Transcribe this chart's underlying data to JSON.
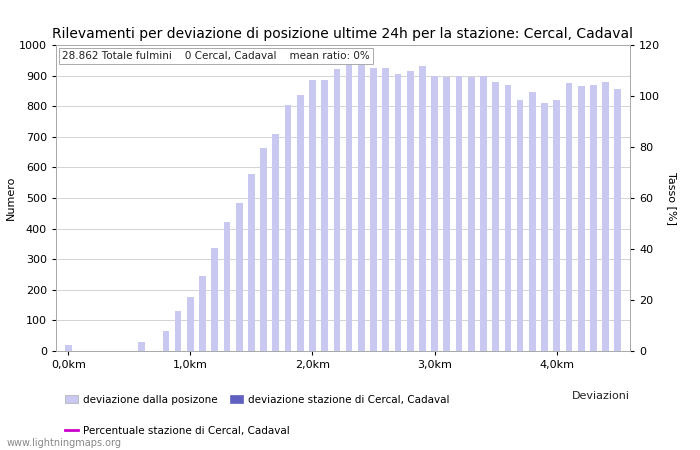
{
  "title": "Rilevamenti per deviazione di posizione ultime 24h per la stazione: Cercal, Cadaval",
  "subtitle": "28.862 Totale fulmini    0 Cercal, Cadaval    mean ratio: 0%",
  "xlabel": "Deviazioni",
  "ylabel_left": "Numero",
  "ylabel_right": "Tasso [%]",
  "ylim_left": [
    0,
    1000
  ],
  "ylim_right": [
    0,
    120
  ],
  "yticks_left": [
    0,
    100,
    200,
    300,
    400,
    500,
    600,
    700,
    800,
    900,
    1000
  ],
  "yticks_right": [
    0,
    20,
    40,
    60,
    80,
    100,
    120
  ],
  "xtick_labels": [
    "0,0km",
    "1,0km",
    "2,0km",
    "3,0km",
    "4,0km"
  ],
  "xtick_positions": [
    0,
    10,
    20,
    30,
    40
  ],
  "bar_color_light": "#c8c8f0",
  "bar_color_dark": "#6060c0",
  "line_color": "#cc00cc",
  "background_color": "#ffffff",
  "grid_color": "#cccccc",
  "bar_values": [
    20,
    0,
    0,
    0,
    0,
    0,
    30,
    0,
    65,
    130,
    175,
    245,
    335,
    420,
    485,
    580,
    665,
    710,
    805,
    835,
    885,
    885,
    920,
    960,
    940,
    925,
    925,
    905,
    915,
    930,
    900,
    895,
    900,
    895,
    900,
    880,
    870,
    820,
    845,
    810,
    820,
    875,
    865,
    870,
    880,
    855
  ],
  "n_bars": 46,
  "legend_entries": [
    {
      "label": "deviazione dalla posizone",
      "color": "#c8c8f0",
      "type": "bar"
    },
    {
      "label": "deviazione stazione di Cercal, Cadaval",
      "color": "#6060c0",
      "type": "bar"
    },
    {
      "label": "Percentuale stazione di Cercal, Cadaval",
      "color": "#cc00cc",
      "type": "line"
    }
  ],
  "watermark": "www.lightningmaps.org",
  "title_fontsize": 10,
  "axis_fontsize": 8,
  "tick_fontsize": 8,
  "subtitle_fontsize": 7.5
}
